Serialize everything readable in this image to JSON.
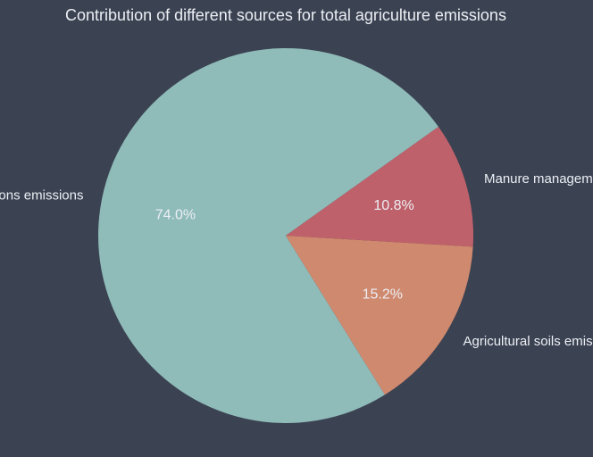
{
  "chart_data": {
    "type": "pie",
    "title": "Contribution of different sources for total agriculture emissions",
    "categories": [
      "Livestocks fermentations emissions",
      "Agricultural soils emissions",
      "Manure management emissions"
    ],
    "values": [
      74.0,
      15.2,
      10.8
    ],
    "value_labels": [
      "74.0%",
      "15.2%",
      "10.8%"
    ],
    "colors": [
      "#8fbbb9",
      "#cf896e",
      "#bf616a"
    ],
    "start_angle_deg": -35.5,
    "direction": "counterclockwise"
  }
}
